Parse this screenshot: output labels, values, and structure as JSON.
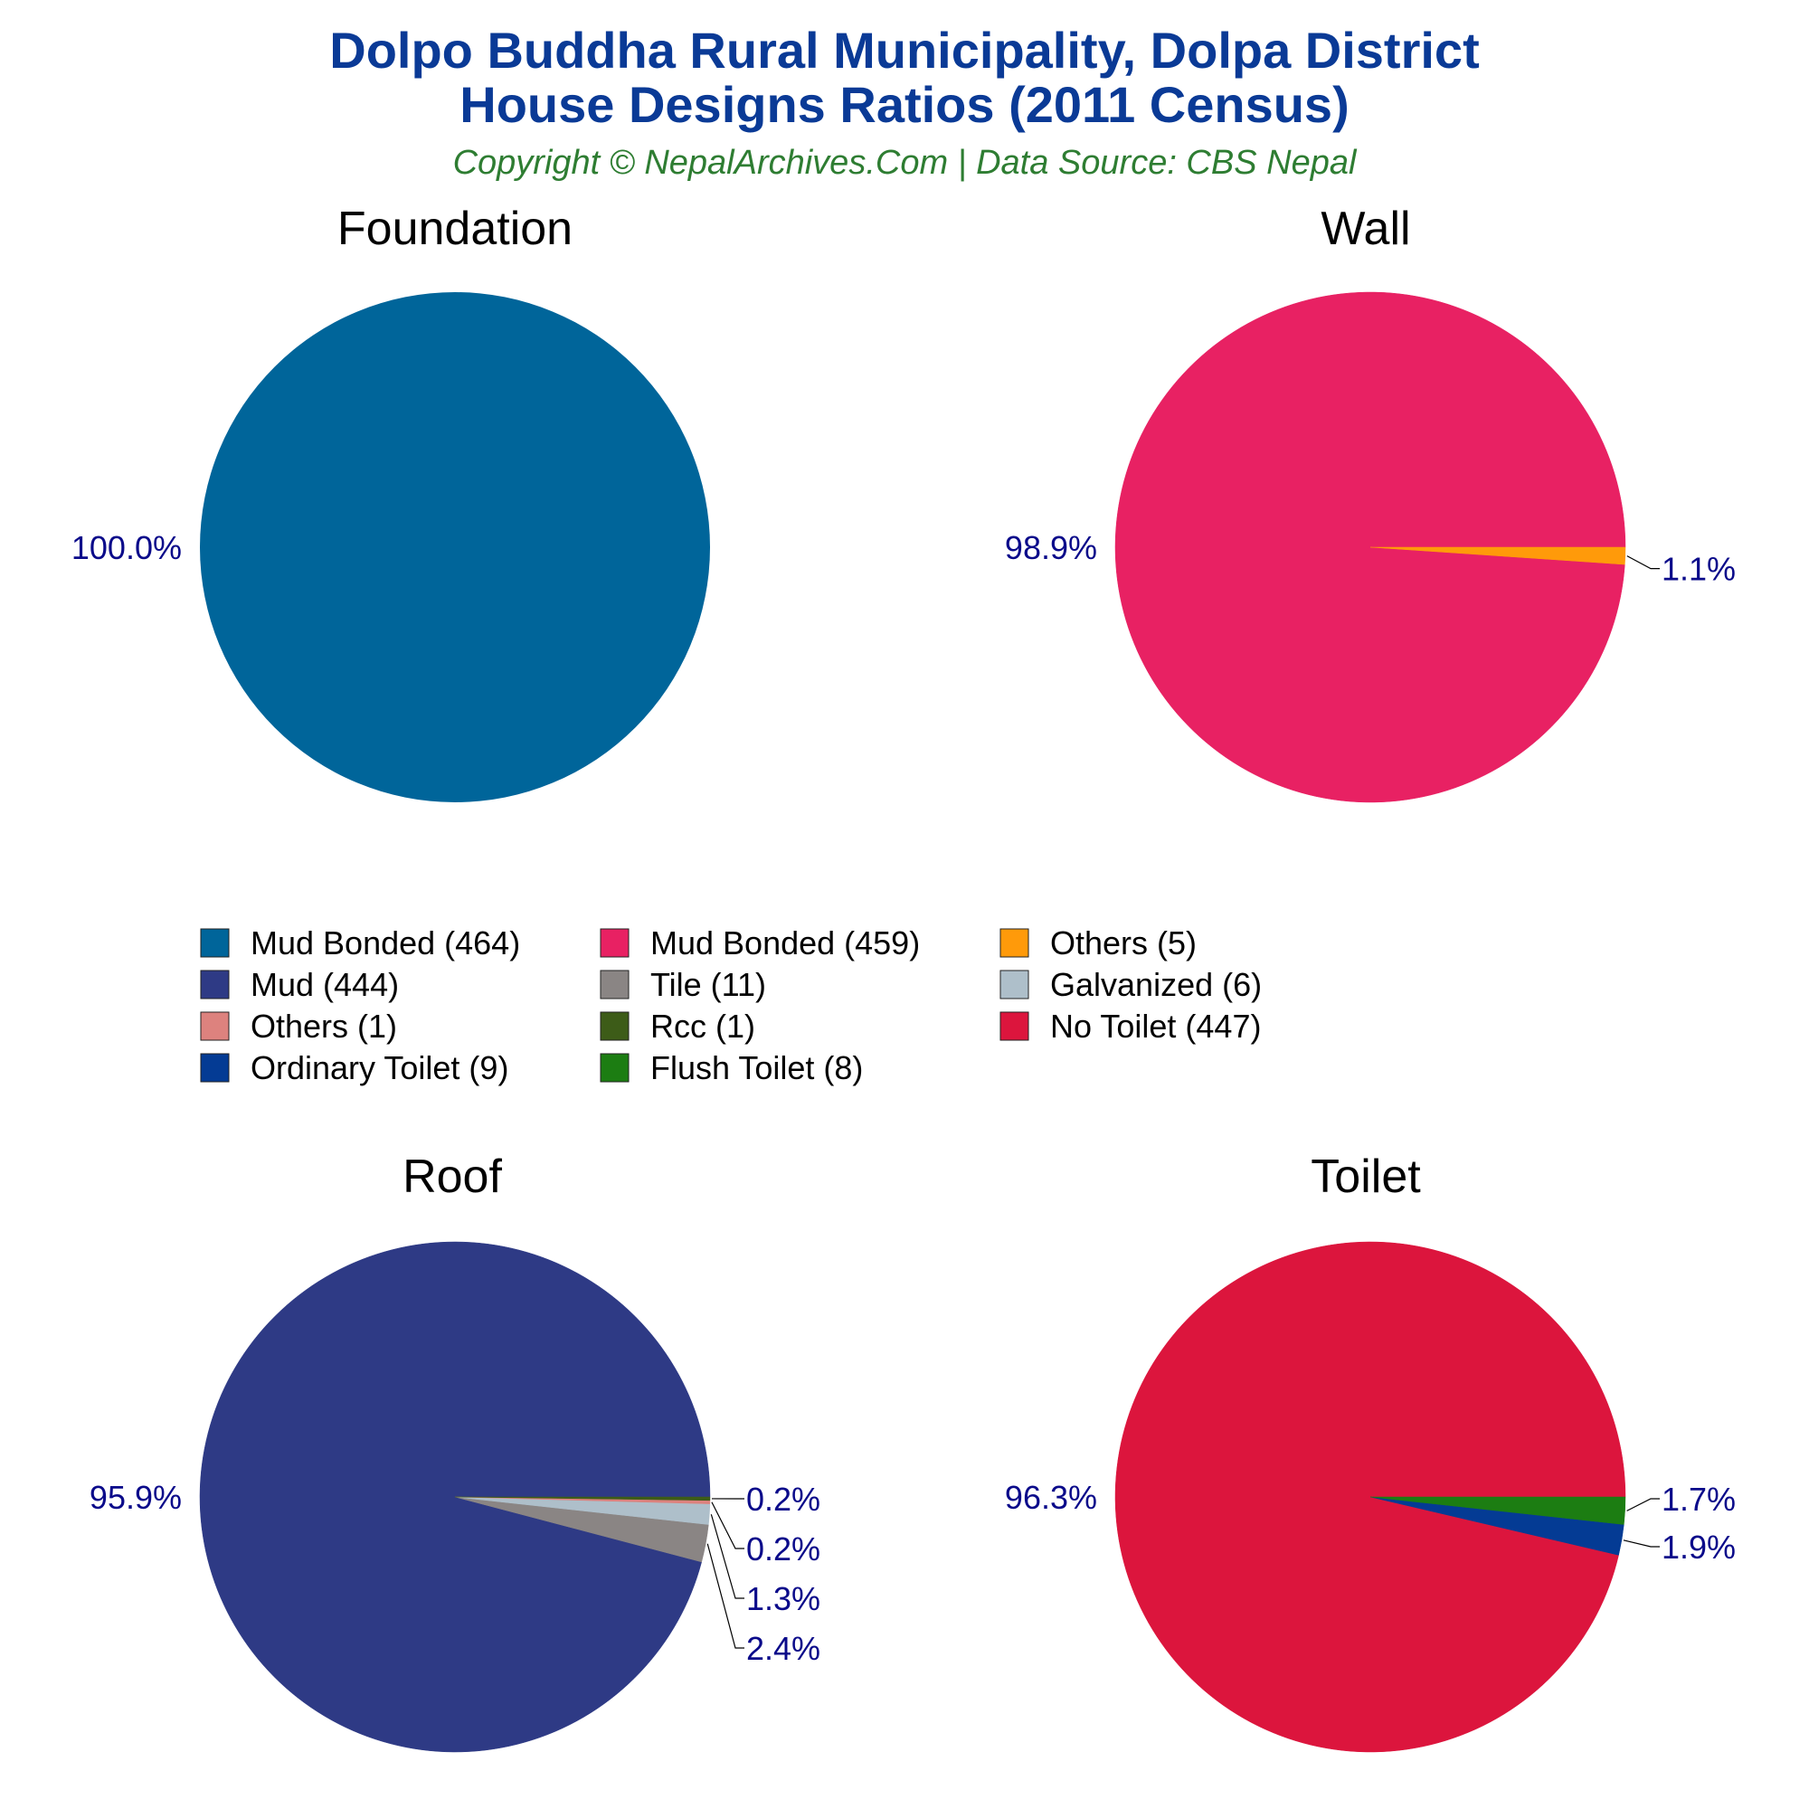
{
  "header": {
    "title_line1": "Dolpo Buddha Rural Municipality, Dolpa District",
    "title_line2": "House Designs Ratios (2011 Census)",
    "subtitle": "Copyright © NepalArchives.Com | Data Source: CBS Nepal"
  },
  "chart_data": [
    {
      "type": "pie",
      "title": "Foundation",
      "slices": [
        {
          "label": "Mud Bonded",
          "value": 464,
          "color": "#00659a",
          "percent_label": "100.0%"
        }
      ]
    },
    {
      "type": "pie",
      "title": "Wall",
      "slices": [
        {
          "label": "Mud Bonded",
          "value": 459,
          "color": "#e82163",
          "percent_label": "98.9%"
        },
        {
          "label": "Others",
          "value": 5,
          "color": "#ff9a0a",
          "percent_label": "1.1%"
        }
      ]
    },
    {
      "type": "pie",
      "title": "Roof",
      "slices": [
        {
          "label": "Mud",
          "value": 444,
          "color": "#2e3a85",
          "percent_label": "95.9%"
        },
        {
          "label": "Tile",
          "value": 11,
          "color": "#8a8584",
          "percent_label": "2.4%"
        },
        {
          "label": "Galvanized",
          "value": 6,
          "color": "#aebfca",
          "percent_label": "1.3%"
        },
        {
          "label": "Others",
          "value": 1,
          "color": "#dd827e",
          "percent_label": "0.2%"
        },
        {
          "label": "Rcc",
          "value": 1,
          "color": "#3d5c18",
          "percent_label": "0.2%"
        }
      ]
    },
    {
      "type": "pie",
      "title": "Toilet",
      "slices": [
        {
          "label": "No Toilet",
          "value": 447,
          "color": "#dc153d",
          "percent_label": "96.3%"
        },
        {
          "label": "Ordinary Toilet",
          "value": 9,
          "color": "#043b94",
          "percent_label": "1.9%"
        },
        {
          "label": "Flush Toilet",
          "value": 8,
          "color": "#1c7d12",
          "percent_label": "1.7%"
        }
      ]
    }
  ],
  "legend": {
    "columns": [
      [
        {
          "text": "Mud Bonded (464)",
          "color": "#00659a"
        },
        {
          "text": "Mud (444)",
          "color": "#2e3a85"
        },
        {
          "text": "Others (1)",
          "color": "#dd827e"
        },
        {
          "text": "Ordinary Toilet (9)",
          "color": "#043b94"
        }
      ],
      [
        {
          "text": "Mud Bonded (459)",
          "color": "#e82163"
        },
        {
          "text": "Tile (11)",
          "color": "#8a8584"
        },
        {
          "text": "Rcc (1)",
          "color": "#3d5c18"
        },
        {
          "text": "Flush Toilet (8)",
          "color": "#1c7d12"
        }
      ],
      [
        {
          "text": "Others (5)",
          "color": "#ff9a0a"
        },
        {
          "text": "Galvanized (6)",
          "color": "#aebfca"
        },
        {
          "text": "No Toilet (447)",
          "color": "#dc153d"
        }
      ]
    ]
  }
}
